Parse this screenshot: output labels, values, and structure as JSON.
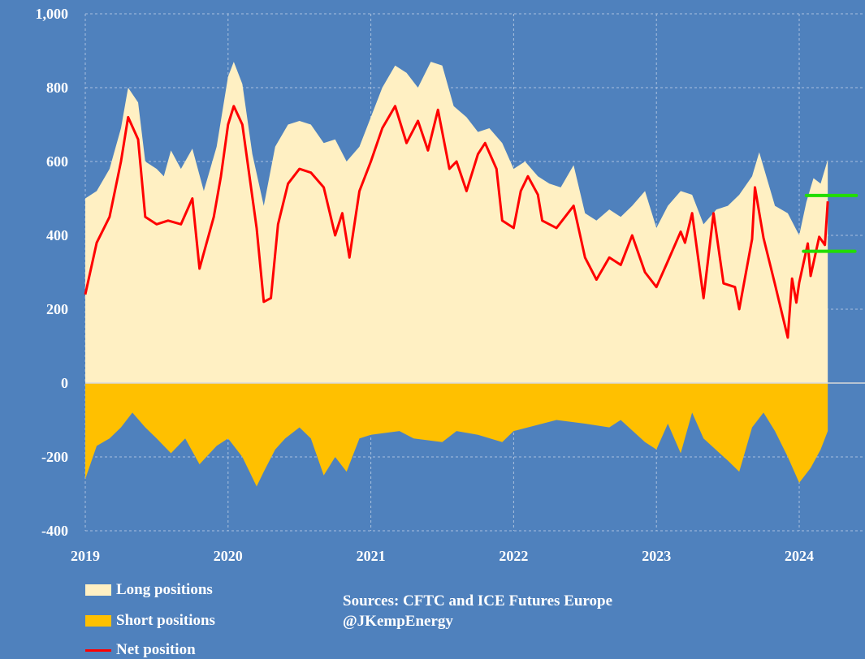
{
  "chart_data": {
    "type": "area",
    "title": "",
    "xlabel": "",
    "ylabel": "",
    "xlim": [
      2019,
      2024.45
    ],
    "ylim": [
      -400,
      1000
    ],
    "grid": true,
    "y_ticks": [
      "1,000",
      "800",
      "600",
      "400",
      "200",
      "0",
      "-200",
      "-400"
    ],
    "y_tick_values": [
      1000,
      800,
      600,
      400,
      200,
      0,
      -200,
      -400
    ],
    "x_ticks": [
      "2019",
      "2020",
      "2021",
      "2022",
      "2023",
      "2024"
    ],
    "x_tick_values": [
      2019,
      2020,
      2021,
      2022,
      2023,
      2024
    ],
    "colors": {
      "background": "#4f81bd",
      "long": "#fff0c3",
      "short": "#ffc000",
      "net": "#ff0000",
      "reference": "#22dd00"
    },
    "series": [
      {
        "name": "Long positions",
        "kind": "area",
        "x": [
          2019.0,
          2019.08,
          2019.17,
          2019.25,
          2019.3,
          2019.37,
          2019.42,
          2019.5,
          2019.55,
          2019.6,
          2019.67,
          2019.75,
          2019.83,
          2019.92,
          2020.0,
          2020.04,
          2020.1,
          2020.17,
          2020.25,
          2020.33,
          2020.42,
          2020.5,
          2020.58,
          2020.67,
          2020.75,
          2020.83,
          2020.92,
          2021.0,
          2021.08,
          2021.17,
          2021.25,
          2021.33,
          2021.42,
          2021.5,
          2021.58,
          2021.67,
          2021.75,
          2021.83,
          2021.92,
          2022.0,
          2022.08,
          2022.17,
          2022.25,
          2022.33,
          2022.42,
          2022.5,
          2022.58,
          2022.67,
          2022.75,
          2022.83,
          2022.92,
          2023.0,
          2023.08,
          2023.17,
          2023.25,
          2023.33,
          2023.42,
          2023.5,
          2023.58,
          2023.67,
          2023.72,
          2023.83,
          2023.92,
          2024.0,
          2024.05,
          2024.1,
          2024.15,
          2024.2
        ],
        "values": [
          500,
          520,
          580,
          690,
          800,
          760,
          600,
          580,
          560,
          630,
          580,
          635,
          520,
          640,
          830,
          870,
          810,
          620,
          480,
          640,
          700,
          710,
          700,
          650,
          660,
          600,
          640,
          720,
          800,
          860,
          840,
          800,
          870,
          860,
          750,
          720,
          680,
          690,
          650,
          580,
          600,
          560,
          540,
          530,
          590,
          460,
          440,
          470,
          450,
          480,
          520,
          420,
          480,
          520,
          510,
          430,
          470,
          480,
          510,
          560,
          625,
          480,
          460,
          400,
          490,
          555,
          540,
          605
        ]
      },
      {
        "name": "Short positions",
        "kind": "area",
        "x": [
          2019.0,
          2019.08,
          2019.17,
          2019.25,
          2019.33,
          2019.42,
          2019.5,
          2019.6,
          2019.7,
          2019.8,
          2019.92,
          2020.0,
          2020.1,
          2020.2,
          2020.25,
          2020.33,
          2020.4,
          2020.5,
          2020.58,
          2020.67,
          2020.75,
          2020.83,
          2020.92,
          2021.0,
          2021.2,
          2021.3,
          2021.5,
          2021.6,
          2021.75,
          2021.92,
          2022.0,
          2022.3,
          2022.5,
          2022.67,
          2022.75,
          2022.92,
          2023.0,
          2023.08,
          2023.17,
          2023.25,
          2023.33,
          2023.5,
          2023.58,
          2023.67,
          2023.75,
          2023.83,
          2023.92,
          2024.0,
          2024.08,
          2024.15,
          2024.2
        ],
        "values": [
          -260,
          -170,
          -150,
          -120,
          -80,
          -120,
          -150,
          -190,
          -150,
          -220,
          -170,
          -150,
          -200,
          -280,
          -240,
          -180,
          -150,
          -120,
          -150,
          -250,
          -200,
          -240,
          -150,
          -140,
          -130,
          -150,
          -160,
          -130,
          -140,
          -160,
          -130,
          -100,
          -110,
          -120,
          -100,
          -160,
          -180,
          -110,
          -190,
          -80,
          -150,
          -210,
          -240,
          -120,
          -80,
          -130,
          -200,
          -270,
          -230,
          -180,
          -130
        ]
      },
      {
        "name": "Net position",
        "kind": "line",
        "x": [
          2019.0,
          2019.08,
          2019.17,
          2019.25,
          2019.3,
          2019.37,
          2019.42,
          2019.5,
          2019.58,
          2019.67,
          2019.75,
          2019.8,
          2019.9,
          2019.95,
          2020.0,
          2020.04,
          2020.1,
          2020.2,
          2020.25,
          2020.3,
          2020.35,
          2020.42,
          2020.5,
          2020.58,
          2020.67,
          2020.75,
          2020.8,
          2020.85,
          2020.92,
          2021.0,
          2021.08,
          2021.17,
          2021.25,
          2021.33,
          2021.4,
          2021.47,
          2021.55,
          2021.6,
          2021.67,
          2021.75,
          2021.8,
          2021.88,
          2021.92,
          2022.0,
          2022.05,
          2022.1,
          2022.17,
          2022.2,
          2022.3,
          2022.42,
          2022.5,
          2022.58,
          2022.67,
          2022.75,
          2022.83,
          2022.92,
          2023.0,
          2023.08,
          2023.17,
          2023.2,
          2023.25,
          2023.33,
          2023.4,
          2023.47,
          2023.55,
          2023.58,
          2023.67,
          2023.69,
          2023.75,
          2023.83,
          2023.92,
          2023.95,
          2023.98,
          2024.0,
          2024.06,
          2024.08,
          2024.14,
          2024.18,
          2024.2
        ],
        "values": [
          240,
          380,
          450,
          600,
          720,
          660,
          450,
          430,
          440,
          430,
          500,
          310,
          450,
          560,
          700,
          750,
          700,
          420,
          220,
          230,
          430,
          540,
          580,
          570,
          530,
          400,
          460,
          340,
          520,
          600,
          690,
          750,
          650,
          710,
          630,
          740,
          580,
          600,
          520,
          620,
          650,
          580,
          440,
          420,
          520,
          560,
          510,
          440,
          420,
          480,
          340,
          280,
          340,
          320,
          400,
          300,
          260,
          330,
          410,
          380,
          460,
          230,
          460,
          270,
          260,
          200,
          390,
          530,
          393,
          268,
          123,
          283,
          218,
          272,
          378,
          290,
          396,
          374,
          492
        ]
      }
    ],
    "reference_lines": [
      {
        "value": 508,
        "x": [
          2024.05,
          2024.4
        ]
      },
      {
        "value": 357,
        "x": [
          2024.03,
          2024.39
        ]
      }
    ]
  },
  "legend": {
    "long": "Long positions",
    "short": "Short positions",
    "net": "Net position"
  },
  "sources": {
    "line1": "Sources: CFTC and ICE Futures Europe",
    "line2": "@JKempEnergy"
  }
}
